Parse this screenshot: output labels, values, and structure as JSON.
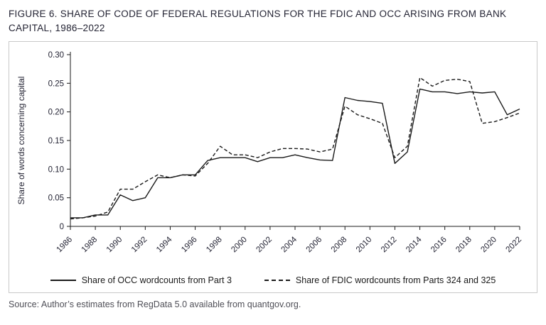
{
  "figure": {
    "title": "FIGURE 6. SHARE OF CODE OF FEDERAL REGULATIONS FOR THE FDIC AND OCC ARISING FROM BANK CAPITAL, 1986–2022",
    "source": "Source: Author’s estimates from RegData 5.0 available from quantgov.org."
  },
  "chart_data": {
    "type": "line",
    "title": "",
    "xlabel": "",
    "ylabel": "Share of words concerning capital",
    "ylim": [
      0,
      0.3
    ],
    "yticks": [
      0,
      0.05,
      0.1,
      0.15,
      0.2,
      0.25,
      0.3
    ],
    "ytick_labels": [
      "0",
      "0.05",
      "0.10",
      "0.15",
      "0.20",
      "0.25",
      "0.30"
    ],
    "xtick_step": 2,
    "grid": false,
    "legend_position": "bottom",
    "x": [
      1986,
      1987,
      1988,
      1989,
      1990,
      1991,
      1992,
      1993,
      1994,
      1995,
      1996,
      1997,
      1998,
      1999,
      2000,
      2001,
      2002,
      2003,
      2004,
      2005,
      2006,
      2007,
      2008,
      2009,
      2010,
      2011,
      2012,
      2013,
      2014,
      2015,
      2016,
      2017,
      2018,
      2019,
      2020,
      2021,
      2022
    ],
    "series": [
      {
        "name": "Share of OCC wordcounts from Part 3",
        "style": "solid",
        "values": [
          0.015,
          0.015,
          0.02,
          0.02,
          0.055,
          0.045,
          0.05,
          0.085,
          0.085,
          0.09,
          0.09,
          0.115,
          0.12,
          0.12,
          0.12,
          0.113,
          0.12,
          0.12,
          0.125,
          0.12,
          0.116,
          0.115,
          0.225,
          0.22,
          0.218,
          0.215,
          0.11,
          0.13,
          0.24,
          0.235,
          0.235,
          0.232,
          0.235,
          0.233,
          0.235,
          0.195,
          0.205
        ]
      },
      {
        "name": "Share of FDIC wordcounts from Parts 324 and 325",
        "style": "dashed",
        "values": [
          0.013,
          0.015,
          0.018,
          0.025,
          0.065,
          0.065,
          0.078,
          0.09,
          0.085,
          0.09,
          0.088,
          0.11,
          0.14,
          0.125,
          0.125,
          0.12,
          0.13,
          0.136,
          0.136,
          0.135,
          0.13,
          0.135,
          0.21,
          0.195,
          0.188,
          0.18,
          0.12,
          0.14,
          0.26,
          0.245,
          0.255,
          0.257,
          0.253,
          0.18,
          0.183,
          0.19,
          0.198
        ]
      }
    ]
  }
}
